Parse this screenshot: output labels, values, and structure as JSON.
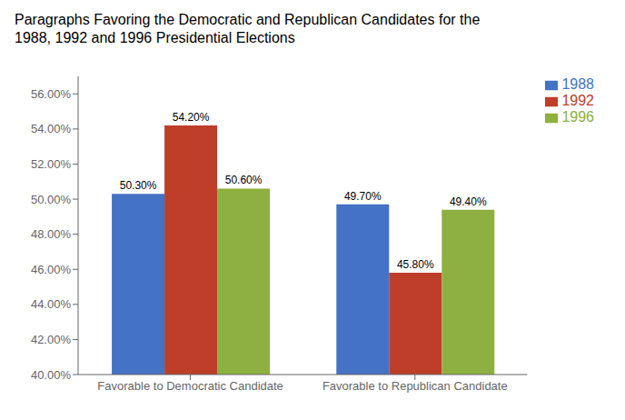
{
  "chart_data": {
    "type": "bar",
    "title": "Paragraphs Favoring the Democratic and Republican Candidates for the\n1988, 1992 and 1996 Presidential Elections",
    "categories": [
      "Favorable to Democratic Candidate",
      "Favorable to Republican Candidate"
    ],
    "series": [
      {
        "name": "1988",
        "color": "#4472C4",
        "values": [
          0.503,
          0.497
        ],
        "value_labels": [
          "50.30%",
          "49.70%"
        ]
      },
      {
        "name": "1992",
        "color": "#BE3E2A",
        "values": [
          0.542,
          0.458
        ],
        "value_labels": [
          "54.20%",
          "45.80%"
        ]
      },
      {
        "name": "1996",
        "color": "#8DB040",
        "values": [
          0.506,
          0.494
        ],
        "value_labels": [
          "50.60%",
          "49.40%"
        ]
      }
    ],
    "ylim": [
      0.4,
      0.57
    ],
    "yticks": [
      {
        "value": 0.4,
        "label": "40.00%"
      },
      {
        "value": 0.42,
        "label": "42.00%"
      },
      {
        "value": 0.44,
        "label": "44.00%"
      },
      {
        "value": 0.46,
        "label": "46.00%"
      },
      {
        "value": 0.48,
        "label": "48.00%"
      },
      {
        "value": 0.5,
        "label": "50.00%"
      },
      {
        "value": 0.52,
        "label": "52.00%"
      },
      {
        "value": 0.54,
        "label": "54.00%"
      },
      {
        "value": 0.56,
        "label": "56.00%"
      }
    ],
    "grid": false,
    "legend": "right",
    "data_labels": true
  }
}
